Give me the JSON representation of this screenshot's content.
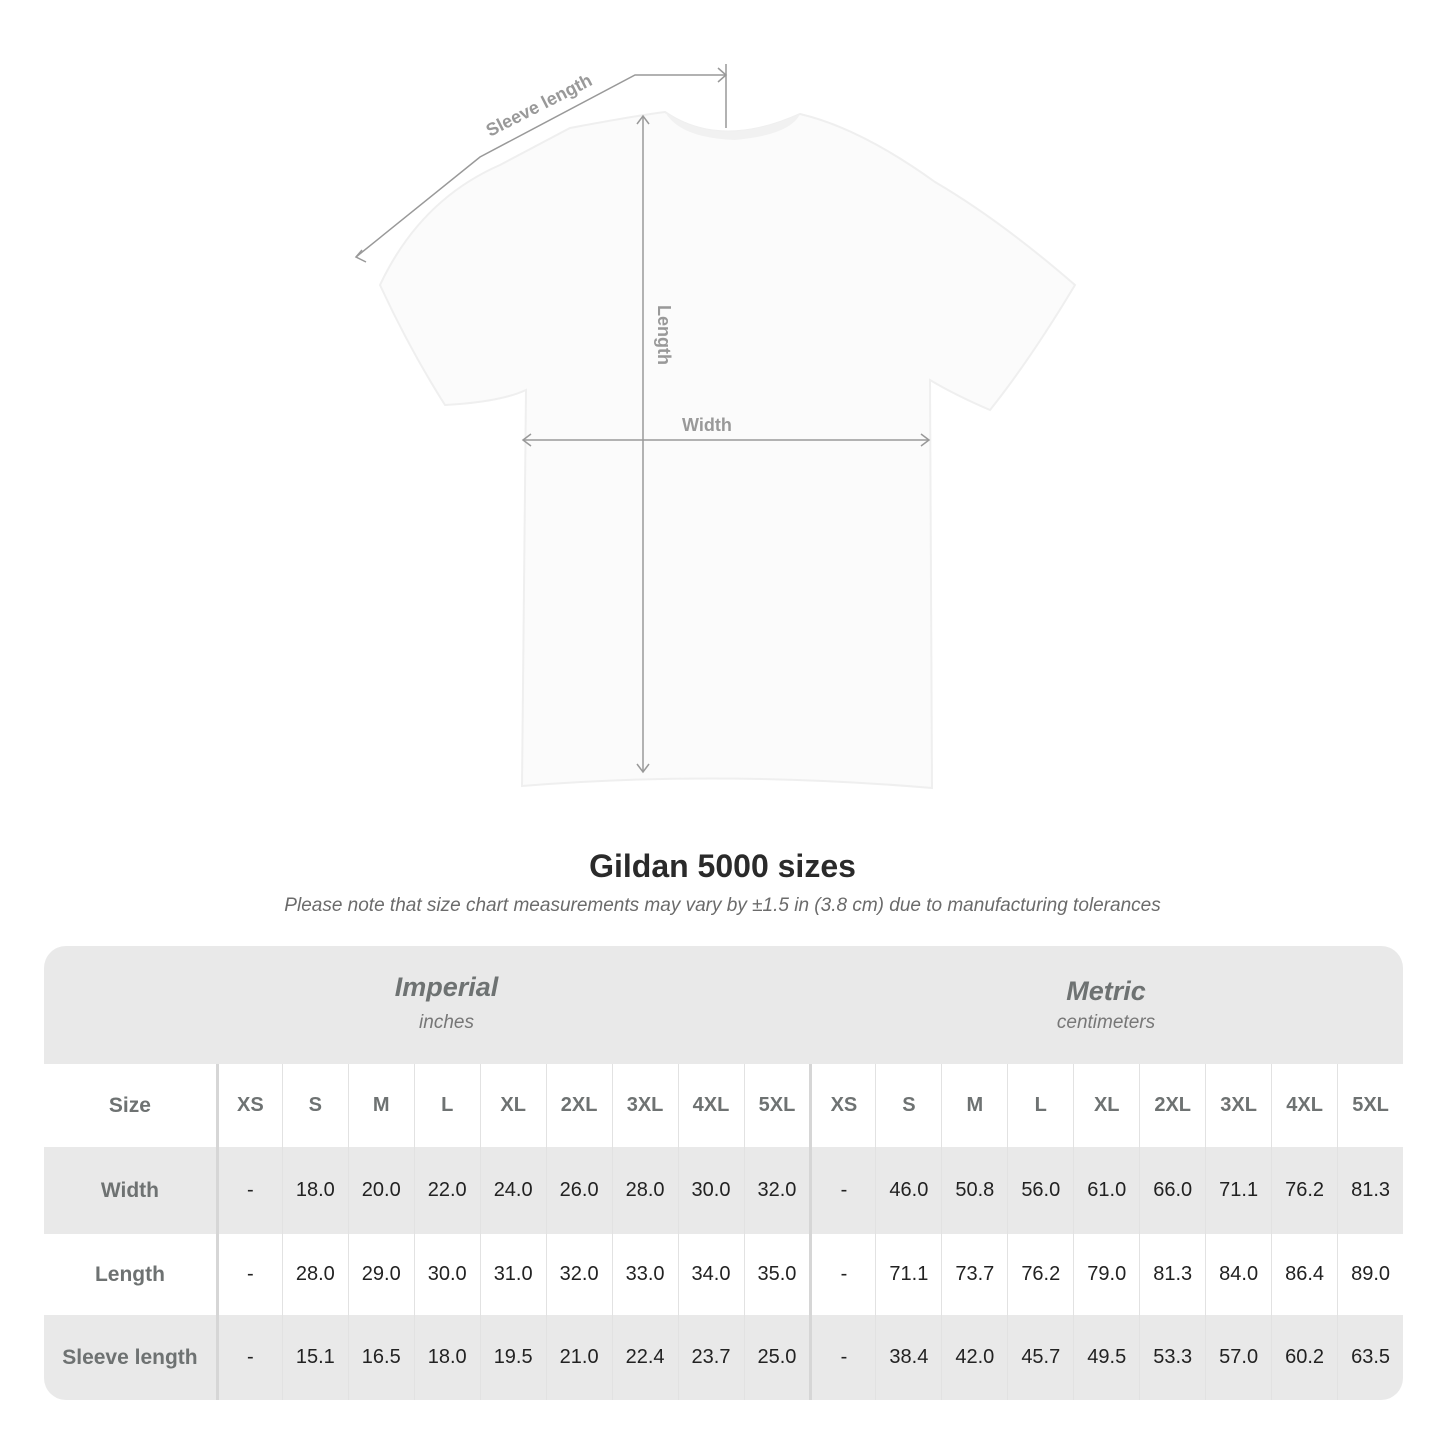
{
  "diagram": {
    "labels": {
      "sleeve": "Sleeve length",
      "length": "Length",
      "width": "Width"
    },
    "line_color": "#999999"
  },
  "title": "Gildan 5000 sizes",
  "note": "Please note that size chart measurements may vary by ±1.5 in (3.8 cm) due to manufacturing tolerances",
  "units": {
    "imperial": {
      "title": "Imperial",
      "subtitle": "inches"
    },
    "metric": {
      "title": "Metric",
      "subtitle": "centimeters"
    }
  },
  "table": {
    "size_label": "Size",
    "sizes": [
      "XS",
      "S",
      "M",
      "L",
      "XL",
      "2XL",
      "3XL",
      "4XL",
      "5XL"
    ],
    "rows": [
      {
        "label": "Width",
        "imperial": [
          "-",
          "18.0",
          "20.0",
          "22.0",
          "24.0",
          "26.0",
          "28.0",
          "30.0",
          "32.0"
        ],
        "metric": [
          "-",
          "46.0",
          "50.8",
          "56.0",
          "61.0",
          "66.0",
          "71.1",
          "76.2",
          "81.3"
        ]
      },
      {
        "label": "Length",
        "imperial": [
          "-",
          "28.0",
          "29.0",
          "30.0",
          "31.0",
          "32.0",
          "33.0",
          "34.0",
          "35.0"
        ],
        "metric": [
          "-",
          "71.1",
          "73.7",
          "76.2",
          "79.0",
          "81.3",
          "84.0",
          "86.4",
          "89.0"
        ]
      },
      {
        "label": "Sleeve length",
        "imperial": [
          "-",
          "15.1",
          "16.5",
          "18.0",
          "19.5",
          "21.0",
          "22.4",
          "23.7",
          "25.0"
        ],
        "metric": [
          "-",
          "38.4",
          "42.0",
          "45.7",
          "49.5",
          "53.3",
          "57.0",
          "60.2",
          "63.5"
        ]
      }
    ]
  }
}
